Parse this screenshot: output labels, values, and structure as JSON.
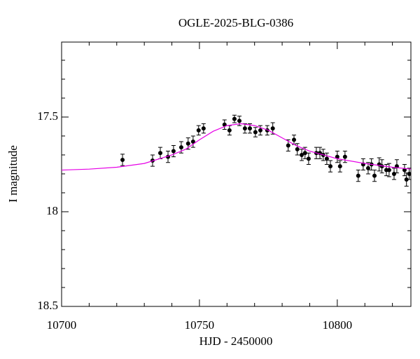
{
  "chart_data": {
    "type": "scatter",
    "title": "OGLE-2025-BLG-0386",
    "x_label": "HJD - 2450000",
    "y_label": "I magnitude",
    "xlim": [
      10700,
      10826.7
    ],
    "ylim": [
      18.5,
      17.104
    ],
    "y_inverted": true,
    "xticks": [
      10700,
      10750,
      10800
    ],
    "yticks": [
      17.5,
      18,
      18.5
    ],
    "xminorticks": [
      10710,
      10720,
      10730,
      10740,
      10760,
      10770,
      10780,
      10790,
      10810,
      10820
    ],
    "yminorticks": [
      17.2,
      17.3,
      17.4,
      17.6,
      17.7,
      17.8,
      17.9,
      18.1,
      18.2,
      18.3,
      18.4
    ],
    "series": [
      {
        "name": "data",
        "color": "#000000",
        "x": [
          10722.1,
          10733.0,
          10735.8,
          10738.6,
          10740.6,
          10743.4,
          10745.9,
          10747.7,
          10749.7,
          10751.5,
          10759.1,
          10760.9,
          10762.7,
          10764.5,
          10766.5,
          10768.3,
          10770.3,
          10772.1,
          10774.6,
          10776.6,
          10782.2,
          10784.3,
          10785.5,
          10787.1,
          10788.3,
          10789.6,
          10792.4,
          10793.7,
          10794.9,
          10796.2,
          10797.5,
          10800.0,
          10801.0,
          10802.8,
          10807.6,
          10809.4,
          10811.2,
          10812.4,
          10813.5,
          10815.2,
          10816.2,
          10817.8,
          10818.8,
          10820.6,
          10821.6,
          10824.4,
          10825.1,
          10826.1
        ],
        "values": [
          17.726,
          17.73,
          17.69,
          17.71,
          17.68,
          17.66,
          17.64,
          17.63,
          17.57,
          17.56,
          17.54,
          17.57,
          17.51,
          17.52,
          17.56,
          17.56,
          17.58,
          17.57,
          17.57,
          17.56,
          17.65,
          17.62,
          17.67,
          17.7,
          17.69,
          17.72,
          17.69,
          17.69,
          17.7,
          17.72,
          17.76,
          17.71,
          17.76,
          17.71,
          17.81,
          17.75,
          17.77,
          17.75,
          17.81,
          17.75,
          17.76,
          17.78,
          17.78,
          17.8,
          17.76,
          17.78,
          17.83,
          17.8
        ],
        "errors": [
          0.03,
          0.03,
          0.03,
          0.03,
          0.03,
          0.03,
          0.03,
          0.03,
          0.025,
          0.025,
          0.025,
          0.025,
          0.02,
          0.025,
          0.025,
          0.025,
          0.025,
          0.025,
          0.025,
          0.03,
          0.03,
          0.025,
          0.03,
          0.03,
          0.03,
          0.03,
          0.03,
          0.03,
          0.03,
          0.03,
          0.03,
          0.03,
          0.03,
          0.03,
          0.03,
          0.03,
          0.03,
          0.03,
          0.03,
          0.035,
          0.035,
          0.03,
          0.035,
          0.03,
          0.035,
          0.03,
          0.035,
          0.03
        ]
      },
      {
        "name": "model",
        "color": "#e600e6",
        "x": [
          10700,
          10710,
          10720,
          10730,
          10740,
          10745,
          10750,
          10755,
          10760,
          10765,
          10770,
          10775,
          10780,
          10785,
          10790,
          10795,
          10800,
          10810,
          10820,
          10826.7
        ],
        "values": [
          17.78,
          17.775,
          17.765,
          17.745,
          17.7,
          17.67,
          17.62,
          17.575,
          17.545,
          17.535,
          17.545,
          17.57,
          17.61,
          17.65,
          17.68,
          17.7,
          17.72,
          17.745,
          17.765,
          17.775
        ]
      }
    ]
  }
}
